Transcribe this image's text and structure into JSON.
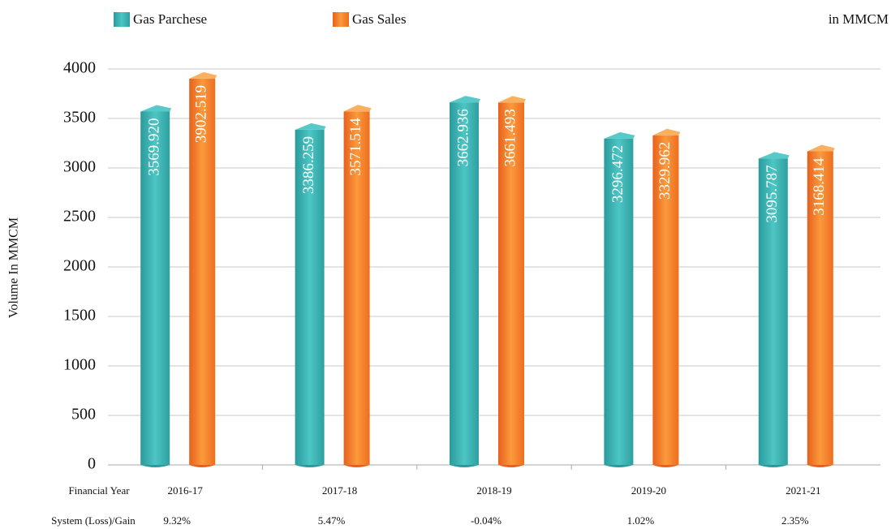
{
  "chart_data": {
    "type": "bar",
    "unit_note": "in MMCM",
    "y_label": "Volume In MMCM",
    "x_label": "Financial Year",
    "categories": [
      "2016-17",
      "2017-18",
      "2018-19",
      "2019-20",
      "2021-21"
    ],
    "series": [
      {
        "name": "Gas Parchese",
        "color": "#3bb8b8",
        "values": [
          3569.92,
          3386.259,
          3662.936,
          3296.472,
          3095.787
        ],
        "value_labels": [
          "3569.920",
          "3386.259",
          "3662.936",
          "3296.472",
          "3095.787"
        ]
      },
      {
        "name": "Gas Sales",
        "color": "#f7862a",
        "values": [
          3902.519,
          3571.514,
          3661.493,
          3329.962,
          3168.414
        ],
        "value_labels": [
          "3902.519",
          "3571.514",
          "3661.493",
          "3329.962",
          "3168.414"
        ]
      }
    ],
    "system_gain": {
      "label": "System (Loss)/Gain",
      "value_labels": [
        "9.32%",
        "5.47%",
        "-0.04%",
        "1.02%",
        "2.35%"
      ]
    },
    "ylim": [
      0,
      4000
    ],
    "yticks": [
      0,
      500,
      1000,
      1500,
      2000,
      2500,
      3000,
      3500,
      4000
    ],
    "grid": true
  }
}
